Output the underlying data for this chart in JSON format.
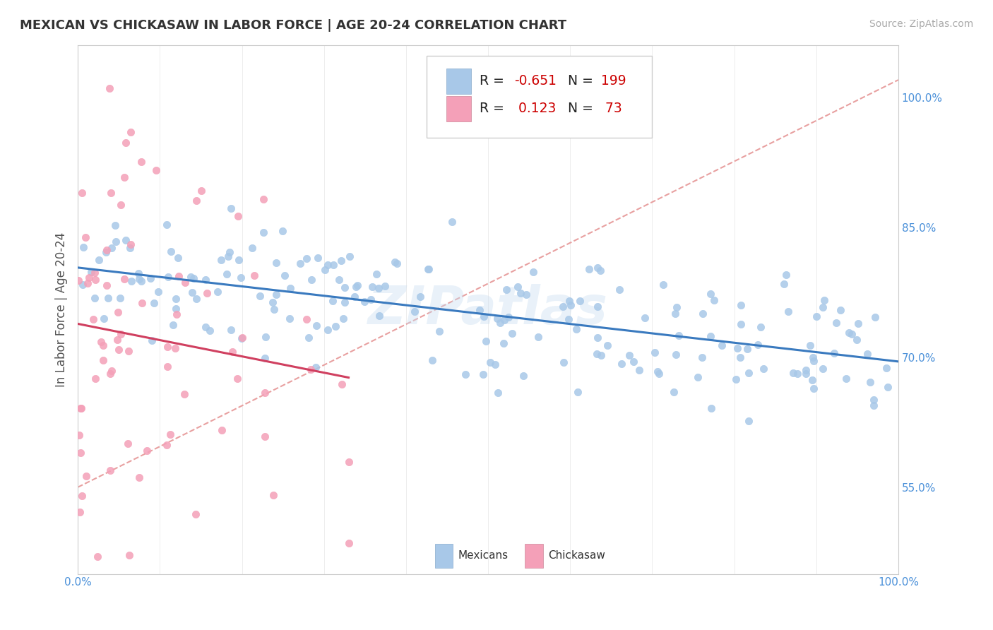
{
  "title": "MEXICAN VS CHICKASAW IN LABOR FORCE | AGE 20-24 CORRELATION CHART",
  "source_text": "Source: ZipAtlas.com",
  "ylabel": "In Labor Force | Age 20-24",
  "xlim": [
    0.0,
    1.0
  ],
  "ylim": [
    0.45,
    1.06
  ],
  "x_ticks": [
    0.0,
    0.1,
    0.2,
    0.3,
    0.4,
    0.5,
    0.6,
    0.7,
    0.8,
    0.9,
    1.0
  ],
  "x_tick_labels": [
    "0.0%",
    "",
    "",
    "",
    "",
    "",
    "",
    "",
    "",
    "",
    "100.0%"
  ],
  "y_ticks": [
    0.55,
    0.7,
    0.85,
    1.0
  ],
  "y_tick_labels": [
    "55.0%",
    "70.0%",
    "85.0%",
    "100.0%"
  ],
  "blue_R": -0.651,
  "blue_N": 199,
  "pink_R": 0.123,
  "pink_N": 73,
  "blue_color": "#a8c8e8",
  "pink_color": "#f4a0b8",
  "blue_line_color": "#3a7abf",
  "pink_line_color": "#d04060",
  "trendline_dashed_color": "#e8a0a0",
  "watermark": "ZIPatlas",
  "background_color": "#ffffff",
  "grid_color": "#cccccc",
  "seed": 42
}
